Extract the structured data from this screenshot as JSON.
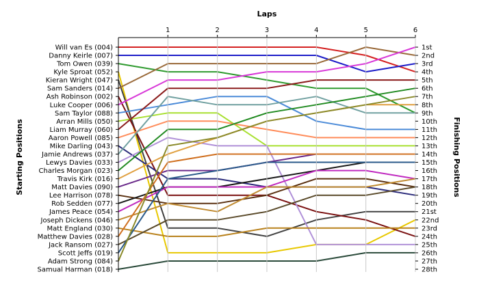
{
  "chart_data": {
    "type": "line",
    "title": "Laps",
    "xlabel": "Laps",
    "ylabel_left": "Starting Positions",
    "ylabel_right": "Finishing Positions",
    "x": [
      0,
      1,
      2,
      3,
      4,
      5,
      6
    ],
    "x_tick_labels": [
      "1",
      "2",
      "3",
      "4",
      "5",
      "6"
    ],
    "y_inverted": true,
    "ylim": [
      1,
      28
    ],
    "grid": false,
    "start_labels": [
      "Will van Es (004)",
      "Danny Keirle (007)",
      "Tom Owen (039)",
      "Kyle Sproat (052)",
      "Kieran Wright (047)",
      "Sam Sanders (014)",
      "Ash Robinson (002)",
      "Luke Cooper (006)",
      "Sam Taylor (088)",
      "Arran Mills (050)",
      "Liam Murray (060)",
      "Aaron Powell (085)",
      "Mike Darling (043)",
      "Jamie Andrews (037)",
      "Lewys Davies (033)",
      "Charles Morgan (023)",
      "Travis Kirk (016)",
      "Matt Davies (090)",
      "Lee Harrison (078)",
      "Rob Sedden (077)",
      "James Peace (054)",
      "Joseph Dickens (046)",
      "Matt England (030)",
      "Matthew Davies (028)",
      "Jack Ransom (027)",
      "Scott Jeffs (019)",
      "Adam Strong (084)",
      "Samual Harman (018)"
    ],
    "finish_labels": [
      "1st",
      "2nd",
      "3rd",
      "4th",
      "5th",
      "6th",
      "7th",
      "8th",
      "9th",
      "10th",
      "11th",
      "12th",
      "13th",
      "14th",
      "15th",
      "16th",
      "17th",
      "18th",
      "19th",
      "20th",
      "21st",
      "22nd",
      "23rd",
      "24th",
      "25th",
      "26th",
      "27th",
      "28th"
    ],
    "series": [
      {
        "color": "#d42020",
        "values": [
          1,
          1,
          1,
          1,
          1,
          2,
          4
        ]
      },
      {
        "color": "#1b1bc8",
        "values": [
          2,
          2,
          2,
          2,
          2,
          4,
          3
        ]
      },
      {
        "color": "#2e9a2e",
        "values": [
          3,
          4,
          4,
          5,
          6,
          6,
          9
        ]
      },
      {
        "color": "#e8c800",
        "values": [
          4,
          26,
          26,
          26,
          25,
          25,
          22
        ]
      },
      {
        "color": "#404040",
        "values": [
          5,
          23,
          23,
          24,
          22,
          21,
          21
        ]
      },
      {
        "color": "#9a6a3a",
        "values": [
          6,
          3,
          3,
          3,
          3,
          1,
          2
        ]
      },
      {
        "color": "#7a1010",
        "values": [
          7,
          19,
          19,
          19,
          21,
          22,
          24
        ]
      },
      {
        "color": "#d838d8",
        "values": [
          8,
          5,
          5,
          4,
          4,
          3,
          1
        ]
      },
      {
        "color": "#4a8ad8",
        "values": [
          9,
          8,
          7,
          7,
          10,
          11,
          11
        ]
      },
      {
        "color": "#a8e030",
        "values": [
          10,
          9,
          9,
          13,
          13,
          13,
          13
        ]
      },
      {
        "color": "#8a1a1a",
        "values": [
          11,
          6,
          6,
          6,
          5,
          5,
          5
        ]
      },
      {
        "color": "#ff8c5a",
        "values": [
          12,
          10,
          10,
          11,
          12,
          12,
          12
        ]
      },
      {
        "color": "#2a2a7a",
        "values": [
          13,
          17,
          17,
          18,
          18,
          18,
          19
        ]
      },
      {
        "color": "#70a0a0",
        "values": [
          14,
          7,
          8,
          8,
          7,
          9,
          9
        ]
      },
      {
        "color": "#b090d8",
        "values": [
          15,
          12,
          13,
          13,
          25,
          25,
          25
        ]
      },
      {
        "color": "#208a20",
        "values": [
          16,
          11,
          11,
          9,
          8,
          7,
          6
        ]
      },
      {
        "color": "#e0a040",
        "values": [
          17,
          14,
          12,
          10,
          9,
          8,
          8
        ]
      },
      {
        "color": "#6a2a8a",
        "values": [
          18,
          16,
          16,
          15,
          14,
          14,
          14
        ]
      },
      {
        "color": "#5a3010",
        "values": [
          19,
          20,
          20,
          19,
          17,
          17,
          18
        ]
      },
      {
        "color": "#181818",
        "values": [
          20,
          18,
          18,
          17,
          16,
          15,
          15
        ]
      },
      {
        "color": "#c02ac0",
        "values": [
          21,
          18,
          18,
          18,
          16,
          16,
          17
        ]
      },
      {
        "color": "#c08a30",
        "values": [
          22,
          20,
          21,
          18,
          18,
          18,
          17
        ]
      },
      {
        "color": "#b8801a",
        "values": [
          23,
          24,
          24,
          23,
          23,
          23,
          23
        ]
      },
      {
        "color": "#d07020",
        "values": [
          24,
          15,
          14,
          14,
          14,
          14,
          14
        ]
      },
      {
        "color": "#5a4a2a",
        "values": [
          25,
          22,
          22,
          21,
          19,
          19,
          18
        ]
      },
      {
        "color": "#2a5a8a",
        "values": [
          26,
          17,
          16,
          15,
          15,
          15,
          15
        ]
      },
      {
        "color": "#8a8a2a",
        "values": [
          27,
          13,
          12,
          10,
          9,
          8,
          7
        ]
      },
      {
        "color": "#2a4a3a",
        "values": [
          28,
          27,
          27,
          27,
          27,
          26,
          26
        ]
      }
    ]
  }
}
